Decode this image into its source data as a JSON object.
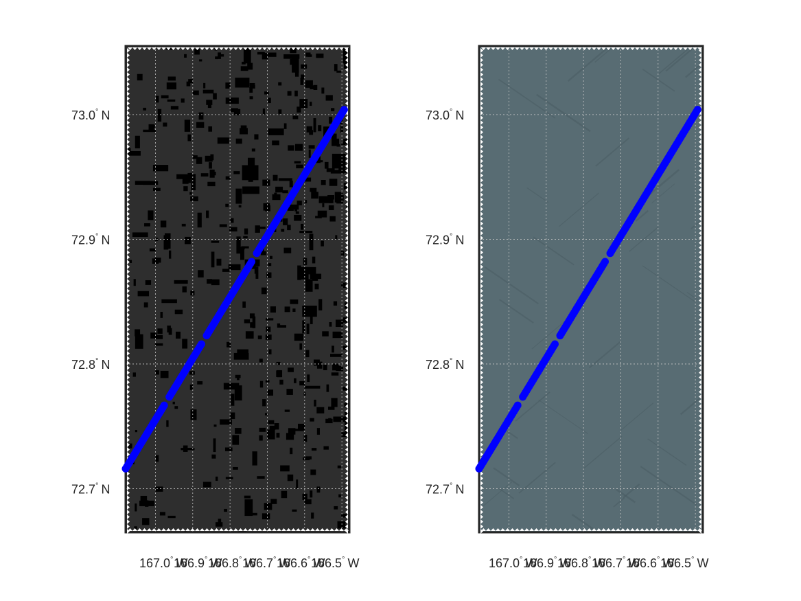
{
  "chart_data": [
    {
      "type": "scatter",
      "title": "",
      "xlabel": "",
      "ylabel": "",
      "background": "dark-mask",
      "lat_ticks": [
        "72.7",
        "72.8",
        "72.9",
        "73.0"
      ],
      "lon_ticks": [
        "167.0",
        "166.9",
        "166.8",
        "166.7",
        "166.6",
        "166.5"
      ],
      "lat_hemisphere": "N",
      "lon_hemisphere": "W",
      "xlim_lon_W": [
        167.08,
        166.48
      ],
      "ylim_lat_N": [
        72.665,
        73.055
      ],
      "grid": true,
      "track": {
        "color": "#0000ff",
        "start": {
          "lon_W": 167.08,
          "lat_N": 72.716
        },
        "end": {
          "lon_W": 166.494,
          "lat_N": 73.004
        }
      }
    },
    {
      "type": "scatter",
      "title": "",
      "xlabel": "",
      "ylabel": "",
      "background": "grey-imagery",
      "lat_ticks": [
        "72.7",
        "72.8",
        "72.9",
        "73.0"
      ],
      "lon_ticks": [
        "167.0",
        "166.9",
        "166.8",
        "166.7",
        "166.6",
        "166.5"
      ],
      "lat_hemisphere": "N",
      "lon_hemisphere": "W",
      "xlim_lon_W": [
        167.08,
        166.48
      ],
      "ylim_lat_N": [
        72.665,
        73.055
      ],
      "grid": true,
      "track": {
        "color": "#0000ff",
        "start": {
          "lon_W": 167.08,
          "lat_N": 72.716
        },
        "end": {
          "lon_W": 166.494,
          "lat_N": 73.004
        }
      }
    }
  ],
  "colors": {
    "mask_background": "#2e2e2e",
    "mask_blocks": "#000000",
    "imagery_background": "#586c73",
    "frame": "#262626",
    "grid": "#c8c8c8"
  }
}
